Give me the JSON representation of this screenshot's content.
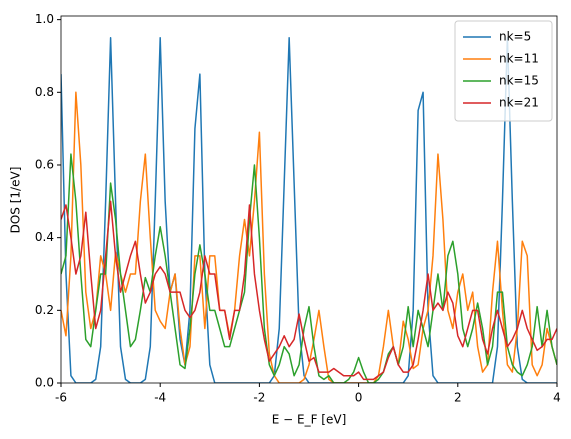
{
  "chart_data": {
    "type": "line",
    "y_label": "DOS [1/eV]",
    "x_label": "E − E_F [eV]",
    "x": [
      -6.0,
      -5.9,
      -5.8,
      -5.7,
      -5.6,
      -5.5,
      -5.4,
      -5.3,
      -5.2,
      -5.1,
      -5.0,
      -4.9,
      -4.8,
      -4.7,
      -4.6,
      -4.5,
      -4.4,
      -4.3,
      -4.2,
      -4.1,
      -4.0,
      -3.9,
      -3.8,
      -3.7,
      -3.6,
      -3.5,
      -3.4,
      -3.3,
      -3.2,
      -3.1,
      -3.0,
      -2.9,
      -2.8,
      -2.7,
      -2.6,
      -2.5,
      -2.4,
      -2.3,
      -2.2,
      -2.1,
      -2.0,
      -1.9,
      -1.8,
      -1.7,
      -1.6,
      -1.5,
      -1.4,
      -1.3,
      -1.2,
      -1.1,
      -1.0,
      -0.9,
      -0.8,
      -0.7,
      -0.6,
      -0.5,
      -0.4,
      -0.3,
      -0.2,
      -0.1,
      0.0,
      0.1,
      0.2,
      0.3,
      0.4,
      0.5,
      0.6,
      0.7,
      0.8,
      0.9,
      1.0,
      1.1,
      1.2,
      1.3,
      1.4,
      1.5,
      1.6,
      1.7,
      1.8,
      1.9,
      2.0,
      2.1,
      2.2,
      2.3,
      2.4,
      2.5,
      2.6,
      2.7,
      2.8,
      2.9,
      3.0,
      3.1,
      3.2,
      3.3,
      3.4,
      3.5,
      3.6,
      3.7,
      3.8,
      3.9,
      4.0
    ],
    "series": [
      {
        "name": "nk=5",
        "color": "#1f77b4",
        "values": [
          0.85,
          0.3,
          0.02,
          0,
          0,
          0,
          0,
          0.01,
          0.1,
          0.5,
          0.95,
          0.5,
          0.1,
          0.01,
          0,
          0,
          0,
          0.01,
          0.1,
          0.5,
          0.95,
          0.5,
          0.25,
          0.3,
          0.12,
          0.05,
          0.2,
          0.7,
          0.85,
          0.3,
          0.05,
          0,
          0,
          0,
          0,
          0,
          0,
          0,
          0,
          0,
          0,
          0,
          0,
          0.02,
          0.15,
          0.55,
          0.95,
          0.55,
          0.15,
          0.02,
          0,
          0,
          0,
          0,
          0,
          0,
          0,
          0,
          0,
          0,
          0,
          0,
          0,
          0,
          0,
          0,
          0,
          0,
          0,
          0,
          0.02,
          0.2,
          0.75,
          0.8,
          0.2,
          0.02,
          0,
          0,
          0,
          0,
          0,
          0,
          0,
          0,
          0,
          0,
          0,
          0,
          0.1,
          0.5,
          0.95,
          0.5,
          0.1,
          0.01,
          0,
          0,
          0,
          0,
          0,
          0,
          0
        ]
      },
      {
        "name": "nk=11",
        "color": "#ff7f0e",
        "values": [
          0.2,
          0.13,
          0.35,
          0.8,
          0.6,
          0.25,
          0.15,
          0.2,
          0.35,
          0.3,
          0.2,
          0.36,
          0.3,
          0.25,
          0.3,
          0.3,
          0.5,
          0.63,
          0.4,
          0.2,
          0.17,
          0.15,
          0.25,
          0.3,
          0.15,
          0.05,
          0.1,
          0.35,
          0.35,
          0.15,
          0.35,
          0.35,
          0.2,
          0.2,
          0.13,
          0.2,
          0.35,
          0.45,
          0.35,
          0.5,
          0.69,
          0.3,
          0.08,
          0.02,
          0,
          0,
          0,
          0,
          0,
          0.01,
          0.05,
          0.12,
          0.2,
          0.1,
          0.01,
          0,
          0,
          0,
          0,
          0,
          0,
          0,
          0,
          0,
          0.02,
          0.1,
          0.2,
          0.1,
          0.05,
          0.17,
          0.12,
          0.04,
          0.05,
          0.15,
          0.2,
          0.35,
          0.63,
          0.45,
          0.2,
          0.15,
          0.25,
          0.3,
          0.2,
          0.25,
          0.1,
          0.03,
          0.05,
          0.25,
          0.39,
          0.2,
          0.05,
          0.03,
          0.15,
          0.39,
          0.35,
          0.05,
          0.02,
          0.05,
          0.15,
          0.1,
          0.05
        ]
      },
      {
        "name": "nk=15",
        "color": "#2ca02c",
        "values": [
          0.3,
          0.35,
          0.63,
          0.5,
          0.3,
          0.12,
          0.1,
          0.2,
          0.3,
          0.3,
          0.55,
          0.45,
          0.3,
          0.2,
          0.1,
          0.12,
          0.2,
          0.29,
          0.25,
          0.35,
          0.43,
          0.35,
          0.25,
          0.15,
          0.05,
          0.04,
          0.15,
          0.3,
          0.38,
          0.3,
          0.2,
          0.2,
          0.15,
          0.1,
          0.1,
          0.15,
          0.2,
          0.25,
          0.45,
          0.6,
          0.4,
          0.15,
          0.05,
          0.02,
          0.05,
          0.1,
          0.08,
          0.02,
          0.05,
          0.15,
          0.21,
          0.1,
          0.02,
          0.01,
          0.02,
          0,
          0,
          0,
          0.01,
          0.03,
          0.07,
          0.03,
          0,
          0,
          0.01,
          0.03,
          0.08,
          0.1,
          0.05,
          0.1,
          0.21,
          0.1,
          0.2,
          0.15,
          0.1,
          0.2,
          0.3,
          0.2,
          0.35,
          0.39,
          0.3,
          0.15,
          0.1,
          0.15,
          0.22,
          0.15,
          0.05,
          0.1,
          0.25,
          0.25,
          0.1,
          0.05,
          0.03,
          0.02,
          0.05,
          0.1,
          0.21,
          0.1,
          0.2,
          0.1,
          0.05
        ]
      },
      {
        "name": "nk=21",
        "color": "#d62728",
        "values": [
          0.45,
          0.49,
          0.4,
          0.3,
          0.35,
          0.47,
          0.3,
          0.15,
          0.2,
          0.35,
          0.5,
          0.35,
          0.25,
          0.3,
          0.35,
          0.39,
          0.3,
          0.22,
          0.25,
          0.3,
          0.32,
          0.3,
          0.25,
          0.25,
          0.25,
          0.2,
          0.18,
          0.2,
          0.25,
          0.35,
          0.3,
          0.3,
          0.2,
          0.2,
          0.12,
          0.2,
          0.2,
          0.3,
          0.49,
          0.3,
          0.2,
          0.12,
          0.06,
          0.08,
          0.1,
          0.13,
          0.1,
          0.12,
          0.19,
          0.12,
          0.06,
          0.07,
          0.03,
          0.03,
          0.03,
          0.04,
          0.03,
          0.02,
          0.02,
          0.02,
          0.03,
          0.01,
          0.01,
          0.01,
          0.02,
          0.03,
          0.07,
          0.1,
          0.05,
          0.03,
          0.03,
          0.05,
          0.12,
          0.2,
          0.3,
          0.2,
          0.22,
          0.2,
          0.25,
          0.22,
          0.13,
          0.1,
          0.15,
          0.2,
          0.2,
          0.12,
          0.08,
          0.15,
          0.2,
          0.15,
          0.1,
          0.12,
          0.15,
          0.2,
          0.15,
          0.12,
          0.09,
          0.1,
          0.12,
          0.12,
          0.15
        ]
      }
    ],
    "xlim": [
      -6,
      4
    ],
    "xticks": [
      -6,
      -4,
      -2,
      0,
      2,
      4
    ],
    "ylim": [
      0,
      1.01
    ],
    "yticks": [
      {
        "value": 0,
        "label": "0.0"
      },
      0.2,
      0.4,
      0.6,
      0.8,
      {
        "value": 1,
        "label": "1.0"
      }
    ],
    "legend": "upper right"
  }
}
